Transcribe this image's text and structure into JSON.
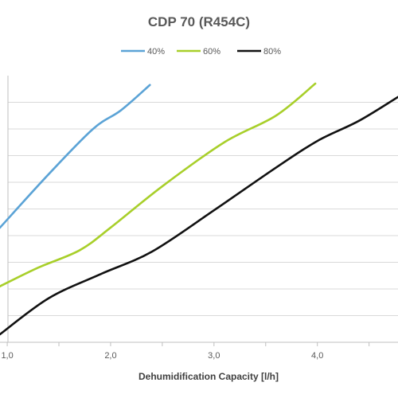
{
  "chart_data": {
    "type": "line",
    "title": "CDP 70 (R454C)",
    "xlabel": "Dehumidification Capacity [l/h]",
    "ylabel": "",
    "x_ticks": [
      "1,0",
      "2,0",
      "3,0",
      "4,0"
    ],
    "x_tick_values": [
      1.0,
      2.0,
      3.0,
      4.0
    ],
    "xlim": [
      0.93,
      4.78
    ],
    "ylim": [
      0,
      10
    ],
    "y_gridlines": [
      1,
      2,
      3,
      4,
      5,
      6,
      7,
      8,
      9
    ],
    "grid": true,
    "legend_position": "top",
    "series": [
      {
        "name": "40%",
        "color": "#5ba3d6",
        "points": [
          [
            0.93,
            4.3
          ],
          [
            1.4,
            6.3
          ],
          [
            1.83,
            8.0
          ],
          [
            2.1,
            8.7
          ],
          [
            2.38,
            9.65
          ]
        ]
      },
      {
        "name": "60%",
        "color": "#a8cf2a",
        "points": [
          [
            0.93,
            2.1
          ],
          [
            1.3,
            2.8
          ],
          [
            1.7,
            3.45
          ],
          [
            2.0,
            4.3
          ],
          [
            2.5,
            5.85
          ],
          [
            3.1,
            7.5
          ],
          [
            3.6,
            8.5
          ],
          [
            3.98,
            9.7
          ]
        ]
      },
      {
        "name": "80%",
        "color": "#111111",
        "points": [
          [
            0.93,
            0.3
          ],
          [
            1.4,
            1.65
          ],
          [
            1.9,
            2.55
          ],
          [
            2.4,
            3.4
          ],
          [
            3.0,
            4.95
          ],
          [
            3.6,
            6.55
          ],
          [
            4.0,
            7.55
          ],
          [
            4.4,
            8.3
          ],
          [
            4.78,
            9.2
          ]
        ]
      }
    ]
  }
}
